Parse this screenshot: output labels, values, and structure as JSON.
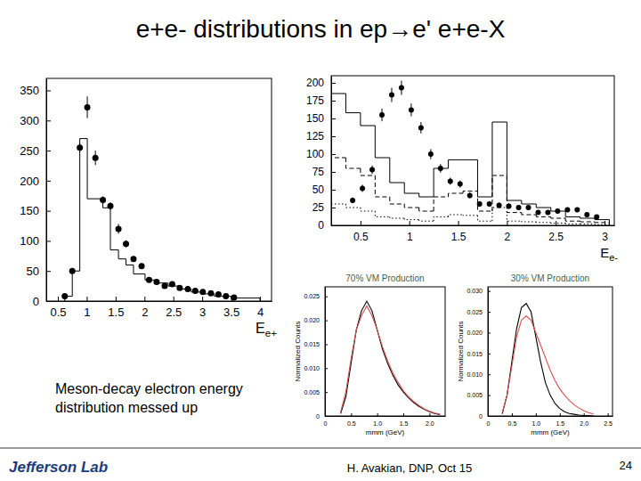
{
  "title": "e+e- distributions in ep→e' e+e-X",
  "note": [
    "Meson-decay electron energy",
    "distribution messed up"
  ],
  "footer": {
    "logo": "Jefferson Lab",
    "author": "H. Avakian, DNP, Oct 15",
    "page": "24"
  },
  "chart_data": [
    {
      "type": "histogram",
      "x_label": "Ee+",
      "xlim": [
        0.3,
        4.2
      ],
      "xticks": [
        0.5,
        1,
        1.5,
        2,
        2.5,
        3,
        3.5,
        4
      ],
      "ylim": [
        0,
        370
      ],
      "yticks": [
        0,
        50,
        100,
        150,
        200,
        250,
        300,
        350
      ],
      "series": [
        {
          "type": "scatter",
          "marker": "circle",
          "color": "#000000",
          "x": [
            0.62,
            0.75,
            0.88,
            1.01,
            1.15,
            1.28,
            1.41,
            1.55,
            1.68,
            1.81,
            1.95,
            2.08,
            2.21,
            2.35,
            2.48,
            2.61,
            2.75,
            2.88,
            3.01,
            3.15,
            3.28,
            3.41,
            3.55
          ],
          "values": [
            8,
            50,
            255,
            322,
            238,
            168,
            158,
            120,
            95,
            70,
            58,
            35,
            32,
            25,
            28,
            22,
            20,
            17,
            15,
            13,
            11,
            8,
            6
          ],
          "errors": [
            3,
            5,
            8,
            18,
            12,
            6,
            6,
            8,
            6,
            4,
            4,
            3,
            3,
            3,
            3,
            3,
            3,
            2,
            2,
            2,
            2,
            2,
            2
          ]
        },
        {
          "type": "step",
          "line_style": "solid",
          "color": "#000000",
          "bins": [
            0.62,
            0.75,
            0.88,
            1.01,
            1.28,
            1.41,
            1.55,
            1.68,
            1.81,
            2.01,
            2.21,
            2.41,
            2.61,
            2.81,
            3.01,
            3.21,
            3.5,
            4.0
          ],
          "counts": [
            8,
            50,
            270,
            170,
            155,
            85,
            70,
            60,
            45,
            35,
            30,
            25,
            20,
            15,
            12,
            8,
            5
          ]
        }
      ]
    },
    {
      "type": "histogram",
      "x_label": "Ee-",
      "xlim": [
        0.2,
        3.1
      ],
      "xticks": [
        0.5,
        1,
        1.5,
        2,
        2.5,
        3
      ],
      "ylim": [
        0,
        210
      ],
      "yticks": [
        0,
        25,
        50,
        75,
        100,
        125,
        150,
        175,
        200
      ],
      "series": [
        {
          "type": "scatter",
          "marker": "circle",
          "color": "#000000",
          "x": [
            0.42,
            0.52,
            0.62,
            0.72,
            0.82,
            0.92,
            1.02,
            1.12,
            1.22,
            1.32,
            1.42,
            1.52,
            1.62,
            1.72,
            1.82,
            1.92,
            2.02,
            2.12,
            2.22,
            2.32,
            2.42,
            2.52,
            2.62,
            2.72,
            2.82,
            2.92
          ],
          "values": [
            35,
            52,
            78,
            155,
            183,
            193,
            162,
            137,
            100,
            80,
            62,
            58,
            42,
            30,
            30,
            28,
            27,
            25,
            25,
            18,
            18,
            20,
            22,
            22,
            15,
            12
          ],
          "errors": [
            4,
            5,
            6,
            9,
            10,
            10,
            9,
            8,
            7,
            6,
            5,
            5,
            4,
            4,
            4,
            4,
            4,
            3,
            3,
            3,
            3,
            3,
            3,
            3,
            3,
            3
          ]
        },
        {
          "type": "step",
          "line_style": "solid",
          "color": "#000000",
          "bins": [
            0.2,
            0.35,
            0.5,
            0.65,
            0.8,
            0.95,
            1.1,
            1.25,
            1.4,
            1.55,
            1.7,
            1.85,
            2.0,
            2.15,
            2.3,
            2.45,
            2.6,
            2.75,
            2.9,
            3.05
          ],
          "counts": [
            185,
            158,
            140,
            95,
            60,
            45,
            40,
            80,
            92,
            92,
            40,
            145,
            35,
            30,
            25,
            20,
            12,
            10,
            8
          ]
        },
        {
          "type": "step",
          "line_style": "dashed",
          "color": "#000000",
          "bins": [
            0.2,
            0.35,
            0.5,
            0.65,
            0.8,
            0.95,
            1.1,
            1.25,
            1.4,
            1.55,
            1.7,
            1.85,
            2.0,
            2.15,
            2.3,
            2.45,
            2.6,
            2.75,
            2.9,
            3.05
          ],
          "counts": [
            95,
            80,
            70,
            40,
            30,
            25,
            20,
            40,
            45,
            48,
            20,
            70,
            18,
            15,
            12,
            10,
            6,
            5,
            4
          ]
        },
        {
          "type": "step",
          "line_style": "dotted",
          "color": "#000000",
          "bins": [
            0.2,
            0.35,
            0.5,
            0.65,
            0.8,
            0.95,
            1.1,
            1.25,
            1.4,
            1.55,
            1.7,
            1.85,
            2.0,
            2.15,
            2.3,
            2.45,
            2.6,
            2.75,
            2.9,
            3.05
          ],
          "counts": [
            30,
            25,
            20,
            12,
            10,
            8,
            6,
            12,
            15,
            14,
            6,
            25,
            6,
            5,
            4,
            3,
            2,
            2,
            1
          ]
        }
      ]
    },
    {
      "type": "line",
      "title": "70% VM Production",
      "x_label": "mmm (GeV)",
      "y_label": "Normalized Counts",
      "xlim": [
        0,
        2.3
      ],
      "xticks": [
        0,
        0.5,
        {
          "value": 1,
          "label": "1.0"
        },
        1.5,
        {
          "value": 2,
          "label": "2.0"
        }
      ],
      "ylim": [
        0,
        0.027
      ],
      "yticks": [
        0,
        0.005,
        {
          "value": 0.01,
          "label": "0.010"
        },
        0.015,
        {
          "value": 0.02,
          "label": "0.020"
        },
        0.025
      ],
      "x": [
        0.3,
        0.4,
        0.5,
        0.6,
        0.7,
        0.8,
        0.9,
        1.0,
        1.1,
        1.2,
        1.3,
        1.4,
        1.5,
        1.6,
        1.7,
        1.8,
        1.9,
        2.0,
        2.1,
        2.2
      ],
      "series": [
        {
          "color": "#000000",
          "values": [
            0.0005,
            0.004,
            0.011,
            0.018,
            0.022,
            0.024,
            0.022,
            0.018,
            0.014,
            0.011,
            0.0085,
            0.0065,
            0.005,
            0.0038,
            0.0028,
            0.002,
            0.0014,
            0.0009,
            0.0005,
            0.0003
          ]
        },
        {
          "color": "#d94f4f",
          "values": [
            0.0008,
            0.005,
            0.012,
            0.018,
            0.021,
            0.023,
            0.021,
            0.018,
            0.0145,
            0.0115,
            0.009,
            0.007,
            0.0053,
            0.004,
            0.003,
            0.0022,
            0.0015,
            0.001,
            0.0006,
            0.0004
          ]
        }
      ]
    },
    {
      "type": "line",
      "title": "30% VM Production",
      "x_label": "mmm (GeV)",
      "y_label": "Normalized Counts",
      "xlim": [
        0,
        2.6
      ],
      "xticks": [
        0,
        0.5,
        {
          "value": 1,
          "label": "1.0"
        },
        1.5,
        {
          "value": 2,
          "label": "2.0"
        },
        2.5
      ],
      "ylim": [
        0,
        0.031
      ],
      "yticks": [
        0,
        0.005,
        {
          "value": 0.01,
          "label": "0.010"
        },
        0.015,
        {
          "value": 0.02,
          "label": "0.020"
        },
        0.025,
        {
          "value": 0.03,
          "label": "0.030"
        }
      ],
      "x": [
        0.3,
        0.4,
        0.5,
        0.6,
        0.7,
        0.8,
        0.9,
        1.0,
        1.1,
        1.2,
        1.3,
        1.4,
        1.5,
        1.6,
        1.7,
        1.8,
        1.9,
        2.0,
        2.1,
        2.2
      ],
      "series": [
        {
          "color": "#000000",
          "values": [
            0.0005,
            0.005,
            0.013,
            0.021,
            0.026,
            0.027,
            0.025,
            0.019,
            0.013,
            0.008,
            0.005,
            0.003,
            0.0018,
            0.001,
            0.0006,
            0.0004,
            0.0002,
            0.0001,
            0.0001,
            0
          ]
        },
        {
          "color": "#d94f4f",
          "values": [
            0.0008,
            0.005,
            0.012,
            0.019,
            0.023,
            0.024,
            0.023,
            0.02,
            0.017,
            0.014,
            0.011,
            0.0085,
            0.0065,
            0.005,
            0.0037,
            0.0027,
            0.0019,
            0.0013,
            0.0008,
            0.0005
          ]
        }
      ]
    }
  ]
}
